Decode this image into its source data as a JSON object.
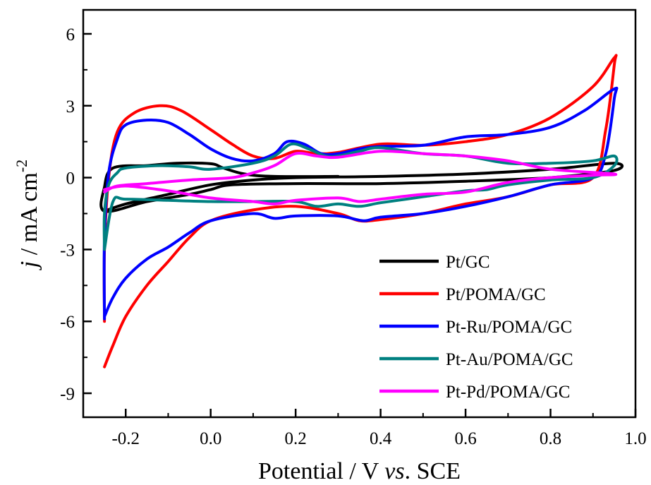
{
  "chart_data": {
    "type": "line",
    "xlabel": "Potential / V",
    "xlabel_italic": "vs",
    "xlabel_suffix": ". SCE",
    "ylabel_italic": "j",
    "ylabel": " / mA cm",
    "ylabel_sup": "-2",
    "xlim": [
      -0.3,
      1.0
    ],
    "ylim": [
      -10.0,
      7.0
    ],
    "x_ticks": [
      -0.2,
      0.0,
      0.2,
      0.4,
      0.6,
      0.8,
      1.0
    ],
    "x_tick_labels": [
      "-0.2",
      "0.0",
      "0.2",
      "0.4",
      "0.6",
      "0.8",
      "1.0"
    ],
    "y_ticks": [
      -9,
      -6,
      -3,
      0,
      3,
      6
    ],
    "y_tick_labels": [
      "-9",
      "-6",
      "-3",
      "0",
      "3",
      "6"
    ],
    "grid": false,
    "legend_position": "bottom-right",
    "series": [
      {
        "name": "Pt/GC",
        "color": "#000000",
        "points": [
          [
            -0.25,
            -1.4
          ],
          [
            -0.2,
            -1.1
          ],
          [
            -0.1,
            -0.7
          ],
          [
            0.0,
            -0.3
          ],
          [
            0.1,
            -0.1
          ],
          [
            0.2,
            0.0
          ],
          [
            0.4,
            0.05
          ],
          [
            0.6,
            0.15
          ],
          [
            0.8,
            0.35
          ],
          [
            0.95,
            0.6
          ],
          [
            0.95,
            0.3
          ],
          [
            0.8,
            0.0
          ],
          [
            0.6,
            -0.15
          ],
          [
            0.4,
            -0.25
          ],
          [
            0.2,
            -0.25
          ],
          [
            0.05,
            -0.3
          ],
          [
            0.0,
            -0.5
          ],
          [
            -0.05,
            -0.7
          ],
          [
            -0.15,
            -1.0
          ],
          [
            -0.25,
            -1.4
          ],
          [
            -0.25,
            -0.4
          ],
          [
            -0.23,
            0.4
          ],
          [
            -0.15,
            0.5
          ],
          [
            -0.08,
            0.6
          ],
          [
            0.0,
            0.58
          ],
          [
            0.03,
            0.4
          ],
          [
            0.08,
            0.15
          ],
          [
            0.15,
            0.05
          ],
          [
            0.3,
            0.05
          ]
        ]
      },
      {
        "name": "Pt/POMA/GC",
        "color": "#ff0000",
        "points": [
          [
            -0.25,
            -6.0
          ],
          [
            -0.25,
            -3.0
          ],
          [
            -0.24,
            0.0
          ],
          [
            -0.22,
            1.9
          ],
          [
            -0.18,
            2.7
          ],
          [
            -0.12,
            3.0
          ],
          [
            -0.07,
            2.8
          ],
          [
            0.0,
            2.0
          ],
          [
            0.05,
            1.4
          ],
          [
            0.1,
            0.9
          ],
          [
            0.15,
            0.8
          ],
          [
            0.2,
            1.1
          ],
          [
            0.25,
            1.0
          ],
          [
            0.3,
            1.05
          ],
          [
            0.4,
            1.4
          ],
          [
            0.5,
            1.35
          ],
          [
            0.6,
            1.5
          ],
          [
            0.7,
            1.8
          ],
          [
            0.8,
            2.5
          ],
          [
            0.9,
            3.8
          ],
          [
            0.95,
            5.0
          ],
          [
            0.95,
            4.7
          ],
          [
            0.93,
            2.0
          ],
          [
            0.9,
            0.0
          ],
          [
            0.8,
            -0.3
          ],
          [
            0.7,
            -0.8
          ],
          [
            0.6,
            -1.1
          ],
          [
            0.5,
            -1.5
          ],
          [
            0.4,
            -1.75
          ],
          [
            0.35,
            -1.8
          ],
          [
            0.3,
            -1.5
          ],
          [
            0.2,
            -1.2
          ],
          [
            0.1,
            -1.35
          ],
          [
            0.0,
            -1.8
          ],
          [
            -0.05,
            -2.5
          ],
          [
            -0.1,
            -3.5
          ],
          [
            -0.15,
            -4.5
          ],
          [
            -0.2,
            -5.8
          ],
          [
            -0.23,
            -7.0
          ],
          [
            -0.25,
            -7.9
          ]
        ]
      },
      {
        "name": "Pt-Ru/POMA/GC",
        "color": "#0000ff",
        "points": [
          [
            -0.25,
            -5.9
          ],
          [
            -0.25,
            -2.5
          ],
          [
            -0.24,
            0.2
          ],
          [
            -0.22,
            1.6
          ],
          [
            -0.2,
            2.2
          ],
          [
            -0.15,
            2.4
          ],
          [
            -0.1,
            2.3
          ],
          [
            -0.05,
            1.8
          ],
          [
            0.0,
            1.2
          ],
          [
            0.05,
            0.8
          ],
          [
            0.1,
            0.7
          ],
          [
            0.15,
            1.0
          ],
          [
            0.18,
            1.5
          ],
          [
            0.22,
            1.4
          ],
          [
            0.26,
            1.0
          ],
          [
            0.3,
            1.0
          ],
          [
            0.35,
            1.2
          ],
          [
            0.4,
            1.3
          ],
          [
            0.5,
            1.35
          ],
          [
            0.6,
            1.7
          ],
          [
            0.7,
            1.8
          ],
          [
            0.8,
            2.1
          ],
          [
            0.88,
            2.8
          ],
          [
            0.95,
            3.7
          ],
          [
            0.95,
            3.3
          ],
          [
            0.93,
            1.0
          ],
          [
            0.9,
            0.0
          ],
          [
            0.8,
            -0.3
          ],
          [
            0.7,
            -0.8
          ],
          [
            0.6,
            -1.2
          ],
          [
            0.5,
            -1.5
          ],
          [
            0.4,
            -1.65
          ],
          [
            0.36,
            -1.8
          ],
          [
            0.3,
            -1.6
          ],
          [
            0.2,
            -1.6
          ],
          [
            0.15,
            -1.7
          ],
          [
            0.1,
            -1.5
          ],
          [
            0.0,
            -1.8
          ],
          [
            -0.05,
            -2.3
          ],
          [
            -0.1,
            -2.9
          ],
          [
            -0.15,
            -3.4
          ],
          [
            -0.2,
            -4.2
          ],
          [
            -0.23,
            -5.0
          ],
          [
            -0.25,
            -5.8
          ]
        ]
      },
      {
        "name": "Pt-Au/POMA/GC",
        "color": "#008080",
        "points": [
          [
            -0.25,
            -3.0
          ],
          [
            -0.25,
            -1.5
          ],
          [
            -0.24,
            -0.3
          ],
          [
            -0.22,
            0.2
          ],
          [
            -0.2,
            0.4
          ],
          [
            -0.12,
            0.5
          ],
          [
            -0.05,
            0.45
          ],
          [
            0.0,
            0.35
          ],
          [
            0.1,
            0.6
          ],
          [
            0.15,
            0.9
          ],
          [
            0.19,
            1.4
          ],
          [
            0.23,
            1.2
          ],
          [
            0.27,
            0.9
          ],
          [
            0.3,
            0.9
          ],
          [
            0.35,
            1.1
          ],
          [
            0.4,
            1.25
          ],
          [
            0.5,
            1.0
          ],
          [
            0.6,
            0.9
          ],
          [
            0.7,
            0.6
          ],
          [
            0.8,
            0.6
          ],
          [
            0.9,
            0.7
          ],
          [
            0.95,
            0.9
          ],
          [
            0.95,
            0.5
          ],
          [
            0.9,
            0.0
          ],
          [
            0.8,
            -0.1
          ],
          [
            0.7,
            -0.3
          ],
          [
            0.65,
            -0.5
          ],
          [
            0.6,
            -0.55
          ],
          [
            0.5,
            -0.8
          ],
          [
            0.4,
            -1.05
          ],
          [
            0.35,
            -1.2
          ],
          [
            0.3,
            -1.1
          ],
          [
            0.25,
            -1.2
          ],
          [
            0.2,
            -1.0
          ],
          [
            0.1,
            -1.0
          ],
          [
            0.0,
            -1.0
          ],
          [
            -0.1,
            -0.95
          ],
          [
            -0.2,
            -0.9
          ],
          [
            -0.23,
            -1.0
          ],
          [
            -0.25,
            -3.0
          ]
        ]
      },
      {
        "name": "Pt-Pd/POMA/GC",
        "color": "#ff00ff",
        "points": [
          [
            -0.25,
            -0.6
          ],
          [
            -0.22,
            -0.35
          ],
          [
            -0.15,
            -0.25
          ],
          [
            -0.05,
            -0.1
          ],
          [
            0.05,
            0.0
          ],
          [
            0.1,
            0.2
          ],
          [
            0.15,
            0.5
          ],
          [
            0.2,
            1.0
          ],
          [
            0.25,
            0.9
          ],
          [
            0.3,
            0.85
          ],
          [
            0.4,
            1.1
          ],
          [
            0.5,
            1.0
          ],
          [
            0.6,
            0.9
          ],
          [
            0.7,
            0.7
          ],
          [
            0.8,
            0.35
          ],
          [
            0.95,
            0.15
          ],
          [
            0.9,
            0.1
          ],
          [
            0.8,
            0.0
          ],
          [
            0.7,
            -0.2
          ],
          [
            0.6,
            -0.6
          ],
          [
            0.5,
            -0.7
          ],
          [
            0.4,
            -0.9
          ],
          [
            0.35,
            -1.0
          ],
          [
            0.3,
            -0.85
          ],
          [
            0.2,
            -0.95
          ],
          [
            0.15,
            -1.1
          ],
          [
            0.1,
            -1.0
          ],
          [
            0.0,
            -0.85
          ],
          [
            -0.1,
            -0.55
          ],
          [
            -0.2,
            -0.35
          ],
          [
            -0.25,
            -0.5
          ]
        ]
      }
    ]
  }
}
